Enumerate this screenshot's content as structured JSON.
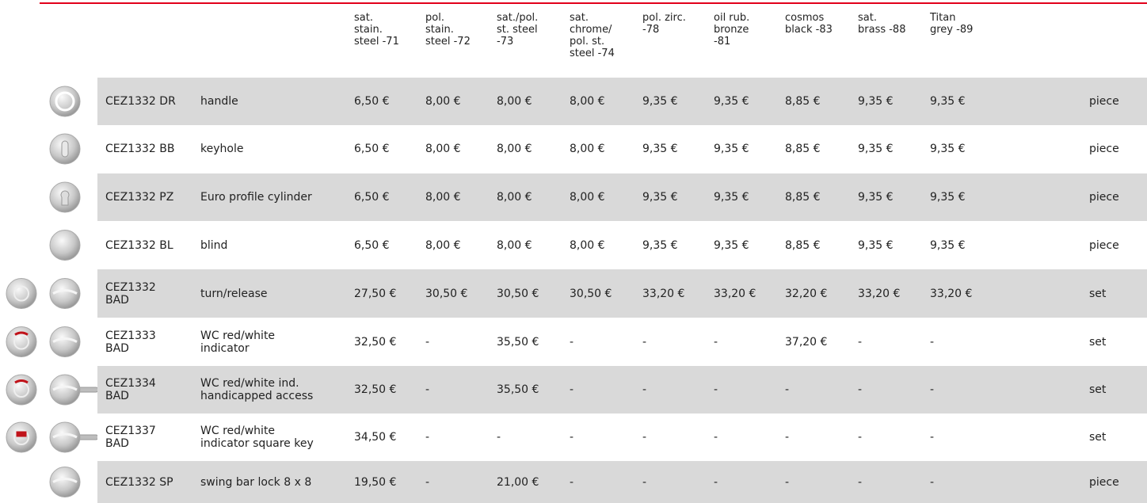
{
  "table": {
    "columns": [
      "sat.\nstain.\nsteel -71",
      "pol.\nstain.\nsteel -72",
      "sat./pol.\nst. steel\n-73",
      "sat.\nchrome/\npol. st.\nsteel -74",
      "pol. zirc.\n-78",
      "oil rub.\nbronze\n-81",
      "cosmos\nblack -83",
      "sat.\nbrass -88",
      "Titan\ngrey -89"
    ],
    "rows": [
      {
        "code": "CEZ1332 DR",
        "description": "handle",
        "prices": [
          "6,50 €",
          "8,00 €",
          "8,00 €",
          "8,00 €",
          "9,35 €",
          "9,35 €",
          "8,85 €",
          "9,35 €",
          "9,35 €"
        ],
        "unit": "piece"
      },
      {
        "code": "CEZ1332 BB",
        "description": "keyhole",
        "prices": [
          "6,50 €",
          "8,00 €",
          "8,00 €",
          "8,00 €",
          "9,35 €",
          "9,35 €",
          "8,85 €",
          "9,35 €",
          "9,35 €"
        ],
        "unit": "piece"
      },
      {
        "code": "CEZ1332 PZ",
        "description": "Euro profile cylinder",
        "prices": [
          "6,50 €",
          "8,00 €",
          "8,00 €",
          "8,00 €",
          "9,35 €",
          "9,35 €",
          "8,85 €",
          "9,35 €",
          "9,35 €"
        ],
        "unit": "piece"
      },
      {
        "code": "CEZ1332 BL",
        "description": "blind",
        "prices": [
          "6,50 €",
          "8,00 €",
          "8,00 €",
          "8,00 €",
          "9,35 €",
          "9,35 €",
          "8,85 €",
          "9,35 €",
          "9,35 €"
        ],
        "unit": "piece"
      },
      {
        "code": "CEZ1332\nBAD",
        "description": "turn/release",
        "prices": [
          "27,50 €",
          "30,50 €",
          "30,50 €",
          "30,50 €",
          "33,20 €",
          "33,20 €",
          "32,20 €",
          "33,20 €",
          "33,20 €"
        ],
        "unit": "set"
      },
      {
        "code": "CEZ1333\nBAD",
        "description": "WC red/white\nindicator",
        "prices": [
          "32,50 €",
          "-",
          "35,50 €",
          "-",
          "-",
          "-",
          "37,20 €",
          "-",
          "-"
        ],
        "unit": "set"
      },
      {
        "code": "CEZ1334\nBAD",
        "description": "WC red/white ind.\nhandicapped access",
        "prices": [
          "32,50 €",
          "-",
          "35,50 €",
          "-",
          "-",
          "-",
          "-",
          "-",
          "-"
        ],
        "unit": "set"
      },
      {
        "code": "CEZ1337\nBAD",
        "description": "WC red/white\nindicator square key",
        "prices": [
          "34,50 €",
          "-",
          "-",
          "-",
          "-",
          "-",
          "-",
          "-",
          "-"
        ],
        "unit": "set"
      },
      {
        "code": "CEZ1332 SP",
        "description": "swing bar lock 8 x 8",
        "prices": [
          "19,50 €",
          "-",
          "21,00 €",
          "-",
          "-",
          "-",
          "-",
          "-",
          "-"
        ],
        "unit": "piece"
      }
    ]
  }
}
